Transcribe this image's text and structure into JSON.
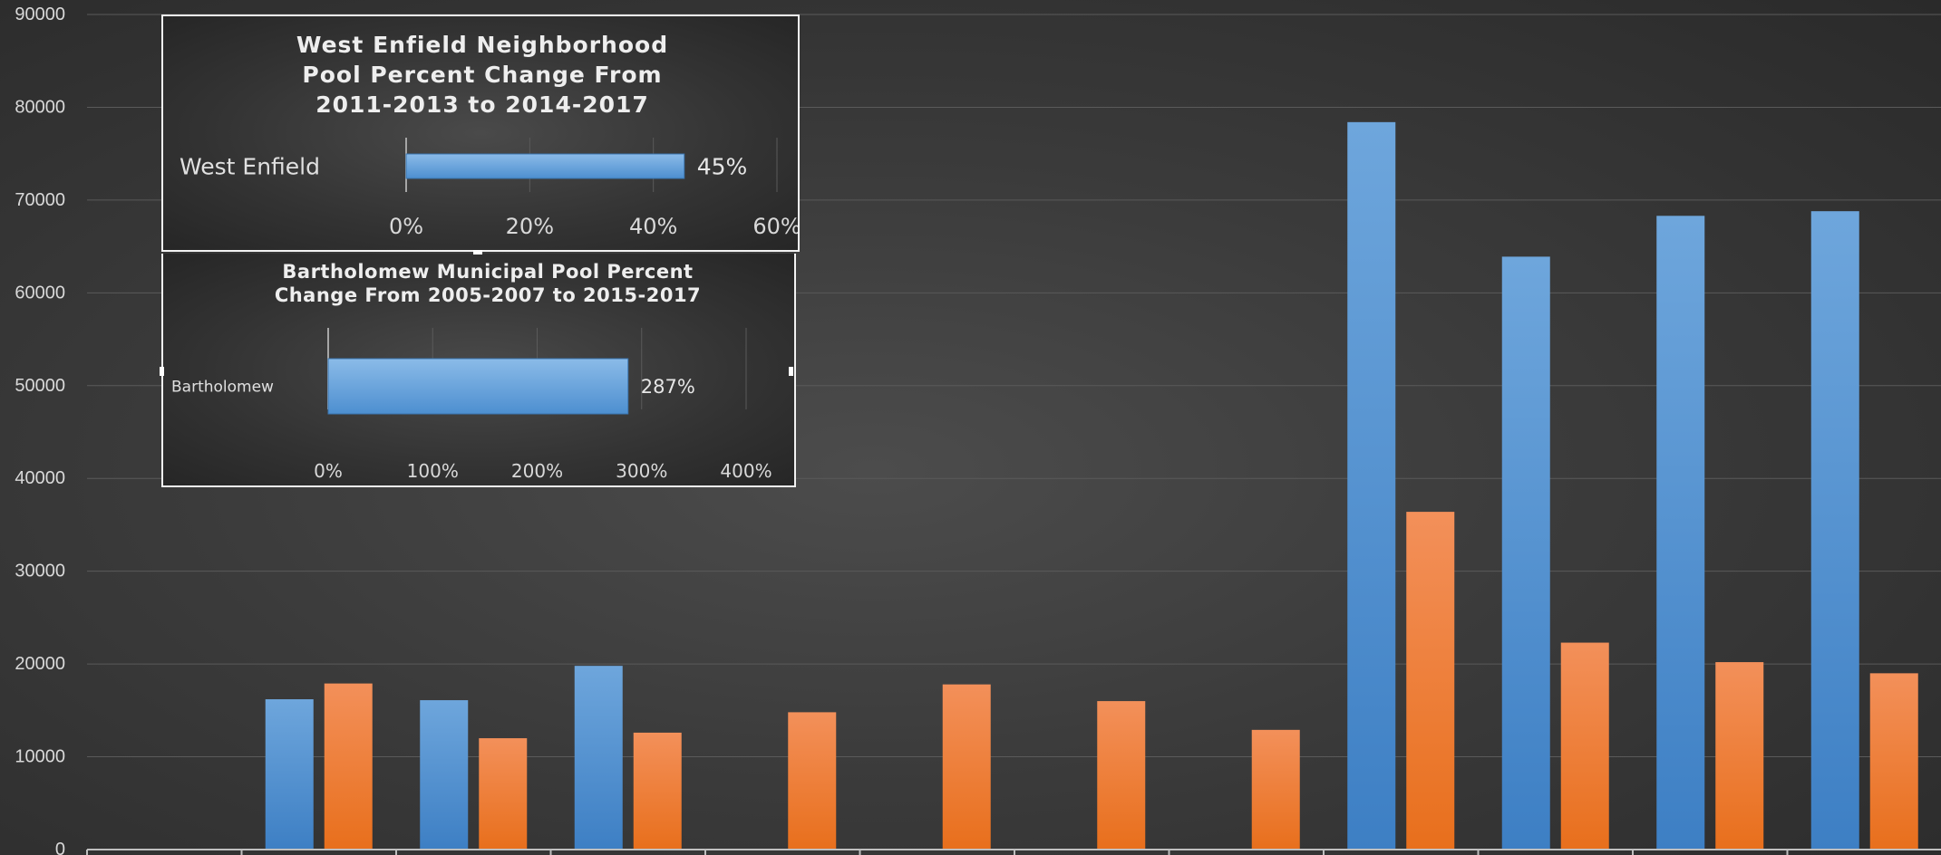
{
  "chart_data": [
    {
      "type": "bar",
      "title": "",
      "xlabel": "",
      "ylabel": "",
      "ylim": [
        0,
        90000
      ],
      "yticks": [
        0,
        10000,
        20000,
        30000,
        40000,
        50000,
        60000,
        70000,
        80000,
        90000
      ],
      "grid": true,
      "legend": "none",
      "categories": [
        "",
        "",
        "",
        "",
        "",
        "",
        "",
        "",
        "",
        "",
        "",
        ""
      ],
      "series": [
        {
          "color": "#5b9bd5",
          "values": [
            null,
            16200,
            16100,
            19800,
            null,
            null,
            null,
            null,
            78400,
            63900,
            68300,
            68800
          ]
        },
        {
          "color": "#ed7d31",
          "values": [
            null,
            17900,
            12000,
            12600,
            14800,
            17800,
            16000,
            12900,
            36400,
            22300,
            20200,
            19000
          ]
        }
      ]
    },
    {
      "type": "bar",
      "orientation": "horizontal",
      "title_lines": [
        "West Enfield Neighborhood",
        "Pool Percent Change From",
        "2011-2013 to 2014-2017"
      ],
      "categories": [
        "West Enfield"
      ],
      "values": [
        45
      ],
      "value_labels": [
        "45%"
      ],
      "xlim": [
        0,
        60
      ],
      "xticks": [
        0,
        20,
        40,
        60
      ],
      "xtick_labels": [
        "0%",
        "20%",
        "40%",
        "60%"
      ],
      "color": "#5b9bd5"
    },
    {
      "type": "bar",
      "orientation": "horizontal",
      "title_lines": [
        "Bartholomew Municipal Pool Percent",
        "Change From 2005-2007 to 2015-2017"
      ],
      "categories": [
        "Bartholomew"
      ],
      "values": [
        287
      ],
      "value_labels": [
        "287%"
      ],
      "xlim": [
        0,
        400
      ],
      "xticks": [
        0,
        100,
        200,
        300,
        400
      ],
      "xtick_labels": [
        "0%",
        "100%",
        "200%",
        "300%",
        "400%"
      ],
      "color": "#5b9bd5"
    }
  ]
}
